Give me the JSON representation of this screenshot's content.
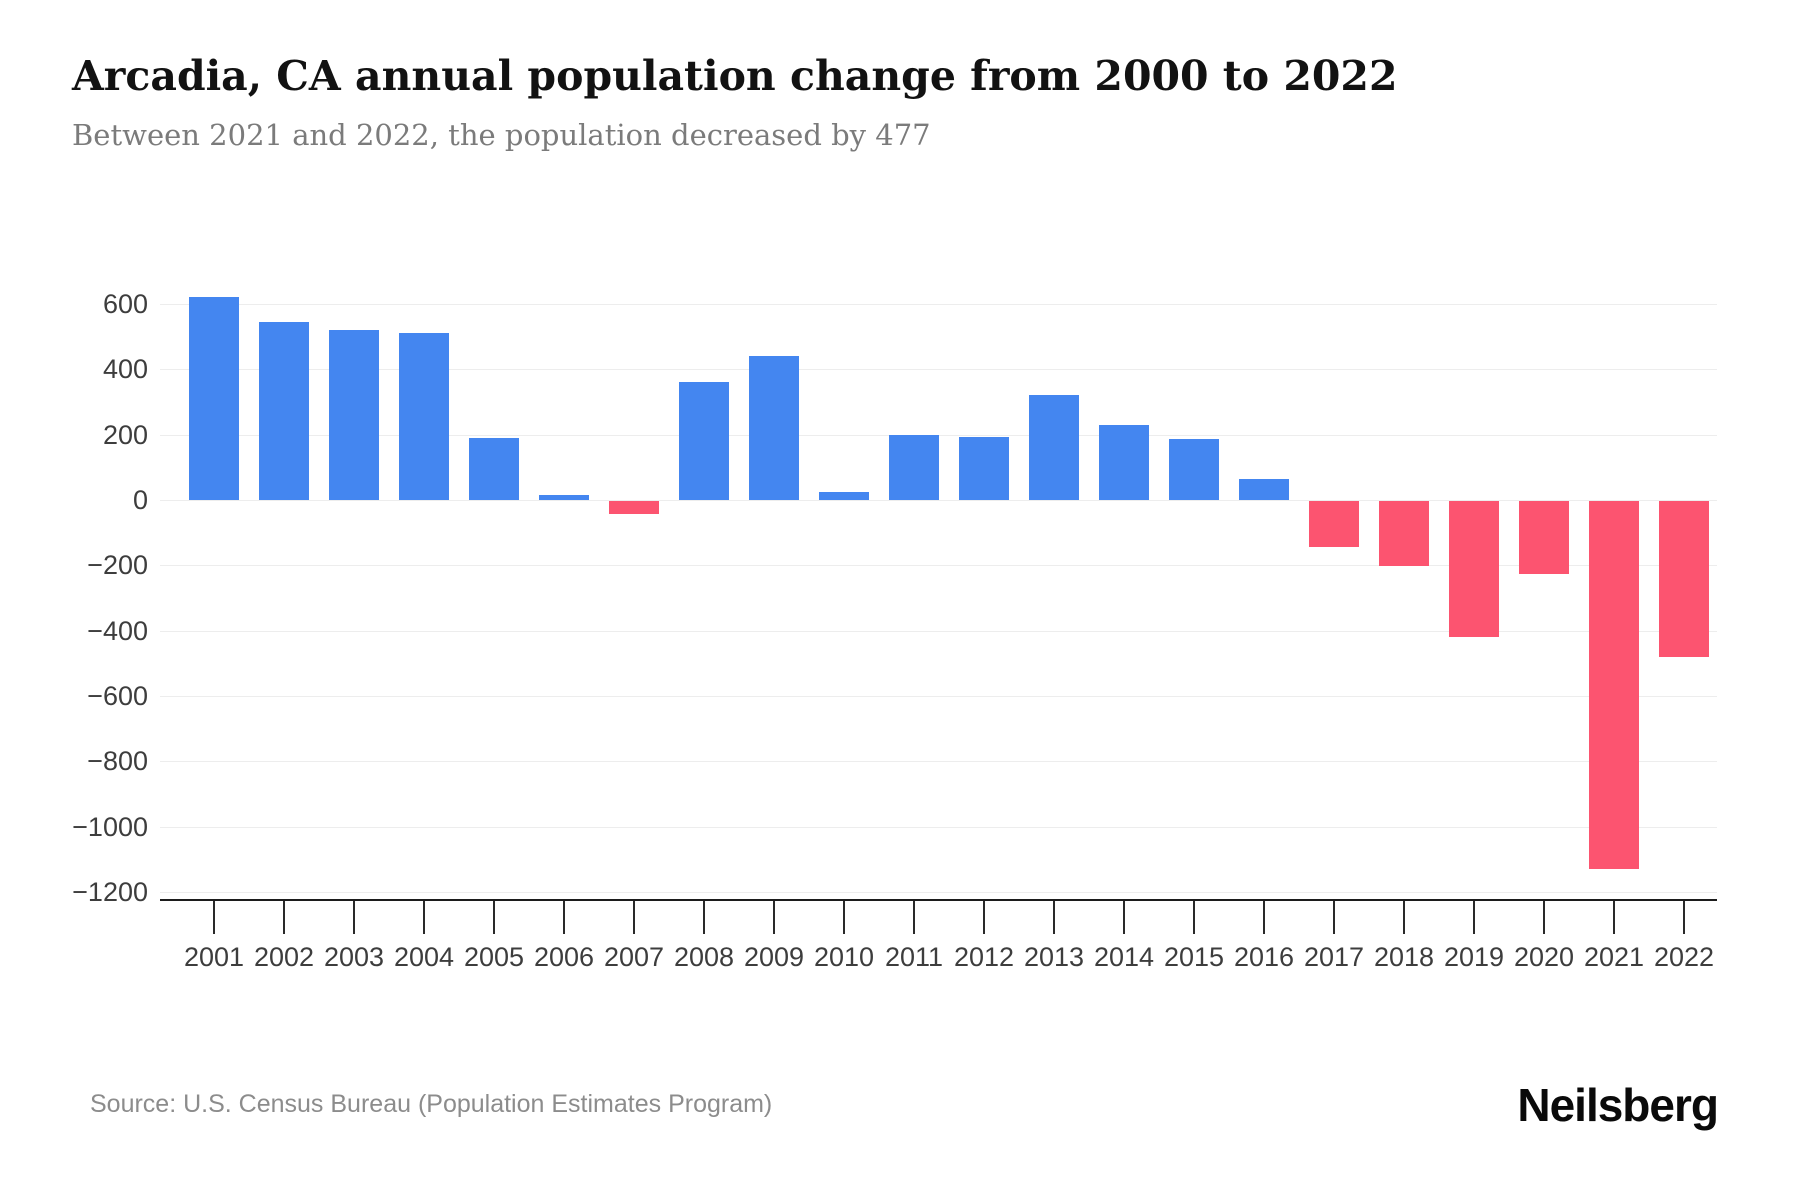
{
  "header": {
    "title": "Arcadia, CA annual population change from 2000 to 2022",
    "subtitle": "Between 2021 and 2022, the population decreased by 477"
  },
  "footer": {
    "source": "Source: U.S. Census Bureau (Population Estimates Program)",
    "brand": "Neilsberg"
  },
  "colors": {
    "positive_bar": "#4486f0",
    "negative_bar": "#fc5470",
    "gridline": "#ededed",
    "axis": "#1c1c1c",
    "tick_label": "#3d3d3d"
  },
  "chart_data": {
    "type": "bar",
    "title": "Arcadia, CA annual population change from 2000 to 2022",
    "xlabel": "",
    "ylabel": "",
    "categories": [
      "2001",
      "2002",
      "2003",
      "2004",
      "2005",
      "2006",
      "2007",
      "2008",
      "2009",
      "2010",
      "2011",
      "2012",
      "2013",
      "2014",
      "2015",
      "2016",
      "2017",
      "2018",
      "2019",
      "2020",
      "2021",
      "2022"
    ],
    "values": [
      620,
      545,
      520,
      512,
      190,
      15,
      -40,
      360,
      440,
      25,
      200,
      192,
      320,
      230,
      188,
      65,
      -140,
      -198,
      -415,
      -222,
      -1125,
      -477
    ],
    "ylim": [
      -1200,
      650
    ],
    "yticks": [
      600,
      400,
      200,
      0,
      -200,
      -400,
      -600,
      -800,
      -1000,
      -1200
    ],
    "grid": true,
    "legend": "none",
    "color_rule": "positive values blue, negative values pink"
  }
}
